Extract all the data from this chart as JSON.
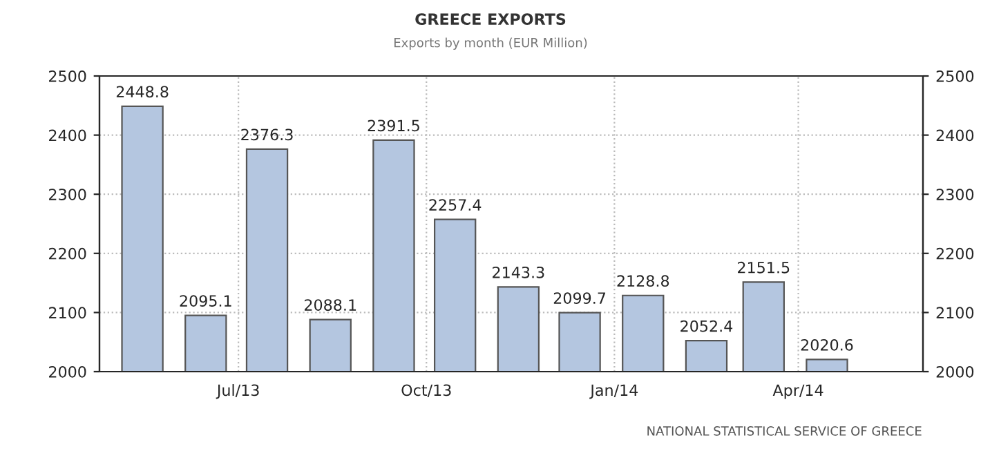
{
  "chart_data": {
    "type": "bar",
    "title": "GREECE EXPORTS",
    "subtitle": "Exports by month (EUR Million)",
    "x": [
      "2013-05-15",
      "2013-06-15",
      "2013-07-15",
      "2013-08-15",
      "2013-09-15",
      "2013-10-15",
      "2013-11-15",
      "2013-12-15",
      "2014-01-15",
      "2014-02-15",
      "2014-03-15",
      "2014-04-15"
    ],
    "values": [
      2448.8,
      2095.1,
      2376.3,
      2088.1,
      2391.5,
      2257.4,
      2143.3,
      2099.7,
      2128.8,
      2052.4,
      2151.5,
      2020.6
    ],
    "color": "#b4c6e0",
    "data_labels": true,
    "xlim": [
      "2013-04-24",
      "2014-06-01"
    ],
    "xticks": [
      {
        "value": "2013-07-01",
        "label": "Jul/13"
      },
      {
        "value": "2013-10-01",
        "label": "Oct/13"
      },
      {
        "value": "2014-01-01",
        "label": "Jan/14"
      },
      {
        "value": "2014-04-01",
        "label": "Apr/14"
      }
    ],
    "ylim": [
      2000,
      2500
    ],
    "yticks": [
      2000,
      2100,
      2200,
      2300,
      2400,
      2500
    ],
    "y2lim": [
      2000,
      2500
    ],
    "y2ticks": [
      2000,
      2100,
      2200,
      2300,
      2400,
      2500
    ],
    "grid": true,
    "legend": false,
    "annotations": [
      "NATIONAL STATISTICAL SERVICE OF GREECE"
    ]
  }
}
